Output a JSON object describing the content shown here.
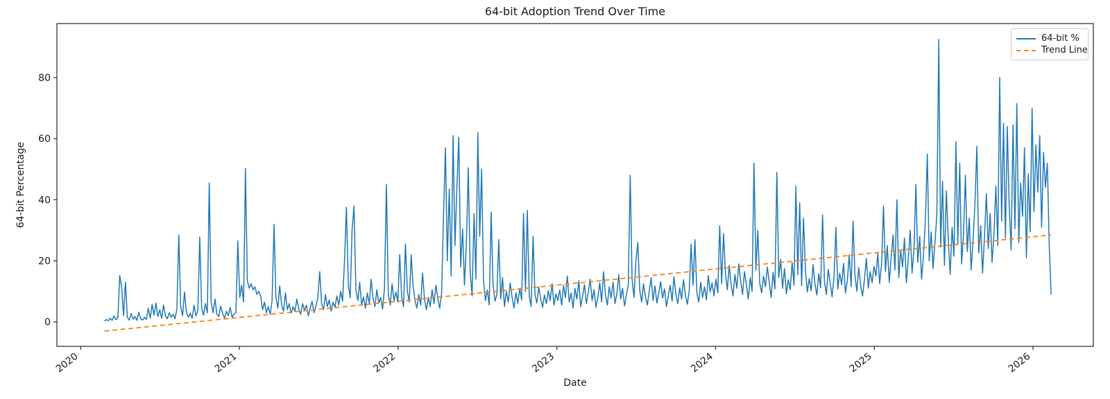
{
  "chart_data": {
    "type": "line",
    "title": "64-bit Adoption Trend Over Time",
    "xlabel": "Date",
    "ylabel": "64-bit Percentage",
    "xlim": [
      2019.85,
      2026.38
    ],
    "ylim": [
      -8,
      97.7
    ],
    "xticks": [
      "2020",
      "2021",
      "2022",
      "2023",
      "2024",
      "2025",
      "2026"
    ],
    "yticks": [
      "0",
      "20",
      "40",
      "60",
      "80"
    ],
    "grid": false,
    "background": "#ffffff",
    "spine_color": "#262626",
    "legend": {
      "position": "upper right",
      "entries": [
        {
          "label": "64-bit %",
          "color": "#1f77b4",
          "style": "solid"
        },
        {
          "label": "Trend Line",
          "color": "#ff7f0e",
          "style": "dashed"
        }
      ]
    },
    "series": [
      {
        "name": "64-bit %",
        "color": "#1f77b4",
        "style": "solid",
        "x_start": 2020.15,
        "x_step": 0.012,
        "values": [
          0.3,
          0.8,
          0.4,
          1.2,
          0.5,
          2.0,
          0.8,
          1.4,
          15.2,
          11.5,
          2.0,
          13.0,
          1.5,
          0.6,
          2.8,
          0.9,
          1.8,
          0.5,
          3.2,
          1.0,
          0.6,
          1.5,
          0.8,
          4.5,
          1.2,
          5.8,
          2.2,
          6.2,
          1.8,
          4.0,
          1.2,
          5.5,
          2.0,
          1.0,
          3.0,
          1.5,
          2.5,
          1.0,
          4.2,
          28.5,
          5.0,
          2.0,
          9.8,
          3.2,
          1.5,
          2.8,
          1.2,
          5.5,
          2.0,
          3.8,
          27.8,
          4.5,
          2.2,
          6.0,
          3.0,
          45.5,
          6.5,
          3.0,
          7.5,
          2.5,
          1.8,
          5.2,
          2.8,
          1.2,
          3.5,
          2.0,
          4.8,
          1.5,
          2.5,
          3.2,
          26.5,
          8.0,
          12.0,
          6.5,
          50.2,
          13.5,
          11.0,
          12.5,
          10.5,
          11.5,
          9.0,
          10.0,
          8.5,
          4.0,
          6.5,
          3.0,
          5.0,
          2.5,
          7.0,
          32.0,
          8.0,
          4.5,
          11.8,
          5.5,
          3.5,
          9.5,
          4.0,
          6.0,
          2.8,
          5.0,
          3.5,
          7.5,
          4.2,
          2.5,
          6.0,
          3.8,
          5.5,
          2.0,
          4.5,
          6.8,
          3.0,
          5.2,
          8.0,
          16.5,
          6.0,
          4.0,
          9.0,
          5.0,
          7.2,
          3.5,
          6.5,
          4.8,
          8.5,
          5.5,
          10.0,
          6.8,
          20.0,
          37.5,
          12.0,
          8.0,
          30.0,
          38.0,
          10.5,
          7.0,
          13.0,
          5.5,
          8.2,
          4.5,
          9.5,
          6.0,
          14.0,
          7.5,
          5.0,
          10.5,
          6.2,
          8.0,
          4.2,
          11.0,
          45.0,
          9.0,
          5.5,
          12.5,
          7.0,
          9.8,
          6.5,
          22.0,
          8.5,
          5.0,
          25.5,
          10.0,
          6.5,
          22.0,
          12.0,
          7.0,
          4.5,
          9.0,
          5.5,
          16.0,
          7.5,
          4.0,
          8.0,
          5.0,
          10.5,
          6.0,
          12.0,
          7.8,
          4.5,
          9.5,
          35.0,
          57.0,
          20.0,
          43.5,
          15.0,
          61.0,
          25.0,
          44.0,
          60.5,
          18.0,
          30.5,
          12.0,
          26.0,
          50.5,
          16.0,
          8.5,
          35.5,
          14.0,
          62.0,
          28.0,
          50.0,
          13.5,
          7.0,
          10.5,
          5.5,
          36.0,
          12.0,
          6.8,
          9.0,
          27.0,
          7.5,
          14.5,
          5.0,
          10.0,
          6.5,
          12.8,
          8.0,
          4.5,
          9.5,
          6.0,
          11.0,
          7.2,
          35.5,
          10.0,
          36.5,
          8.5,
          5.0,
          28.0,
          9.0,
          6.2,
          11.5,
          7.5,
          4.8,
          8.8,
          6.0,
          10.2,
          7.0,
          12.5,
          5.5,
          9.2,
          7.0,
          10.5,
          5.5,
          12.0,
          8.0,
          15.0,
          6.5,
          9.5,
          4.5,
          11.0,
          7.5,
          13.5,
          5.0,
          8.5,
          12.2,
          6.0,
          9.8,
          14.0,
          7.0,
          10.5,
          4.8,
          8.0,
          12.8,
          6.5,
          16.5,
          9.0,
          5.5,
          11.5,
          7.8,
          13.0,
          6.0,
          9.2,
          15.5,
          7.5,
          11.0,
          5.2,
          8.8,
          12.0,
          48.0,
          14.0,
          8.0,
          20.0,
          26.0,
          10.5,
          6.5,
          12.5,
          8.2,
          5.5,
          10.0,
          14.5,
          7.0,
          11.8,
          6.2,
          9.5,
          13.2,
          7.8,
          10.8,
          5.0,
          8.5,
          12.0,
          6.8,
          14.8,
          9.0,
          6.0,
          11.2,
          7.5,
          13.8,
          8.8,
          5.8,
          10.2,
          25.5,
          12.0,
          27.0,
          9.5,
          6.5,
          13.0,
          8.0,
          11.5,
          7.2,
          15.2,
          9.8,
          12.8,
          8.5,
          14.0,
          9.5,
          31.5,
          12.5,
          29.0,
          16.0,
          10.5,
          18.5,
          12.0,
          8.5,
          15.5,
          11.0,
          19.0,
          13.5,
          9.0,
          16.5,
          12.2,
          7.5,
          14.5,
          10.0,
          52.0,
          17.0,
          30.0,
          12.8,
          9.5,
          15.0,
          11.5,
          18.0,
          13.0,
          8.0,
          16.2,
          10.8,
          49.0,
          14.5,
          20.5,
          11.0,
          17.5,
          9.2,
          13.8,
          10.5,
          19.5,
          12.0,
          44.5,
          15.5,
          39.0,
          11.8,
          34.0,
          16.8,
          9.8,
          14.2,
          10.2,
          18.8,
          12.5,
          8.8,
          15.8,
          11.2,
          35.0,
          13.2,
          9.0,
          17.2,
          12.8,
          8.2,
          14.8,
          31.0,
          10.8,
          16.0,
          12.2,
          19.2,
          9.5,
          13.5,
          22.0,
          11.5,
          33.0,
          15.2,
          10.0,
          17.8,
          12.0,
          8.5,
          14.0,
          20.8,
          11.0,
          16.5,
          12.8,
          18.2,
          15.0,
          22.5,
          12.5,
          19.0,
          38.0,
          16.5,
          25.0,
          13.0,
          21.0,
          28.5,
          17.0,
          40.0,
          14.5,
          23.5,
          18.0,
          27.5,
          12.8,
          20.5,
          30.0,
          16.0,
          24.0,
          45.0,
          19.5,
          28.0,
          14.0,
          22.0,
          33.5,
          55.0,
          20.0,
          29.5,
          17.5,
          26.0,
          35.0,
          92.5,
          24.5,
          46.0,
          18.5,
          43.0,
          27.0,
          15.5,
          31.0,
          21.5,
          59.0,
          25.5,
          52.0,
          19.0,
          28.5,
          48.0,
          23.0,
          34.0,
          17.0,
          26.5,
          38.5,
          57.5,
          22.5,
          31.5,
          16.0,
          27.5,
          42.0,
          24.0,
          35.5,
          19.5,
          29.0,
          44.5,
          25.0,
          80.0,
          33.0,
          65.0,
          27.5,
          64.0,
          38.0,
          23.5,
          64.5,
          30.5,
          71.5,
          26.0,
          45.5,
          34.5,
          57.0,
          21.0,
          48.5,
          29.5,
          70.0,
          36.0,
          58.0,
          42.5,
          61.0,
          31.0,
          55.5,
          44.0,
          52.0,
          25.0,
          9.0
        ]
      },
      {
        "name": "Trend Line",
        "color": "#ff7f0e",
        "style": "dashed",
        "points": [
          [
            2020.15,
            -3.0
          ],
          [
            2026.114,
            28.5
          ]
        ]
      }
    ]
  }
}
